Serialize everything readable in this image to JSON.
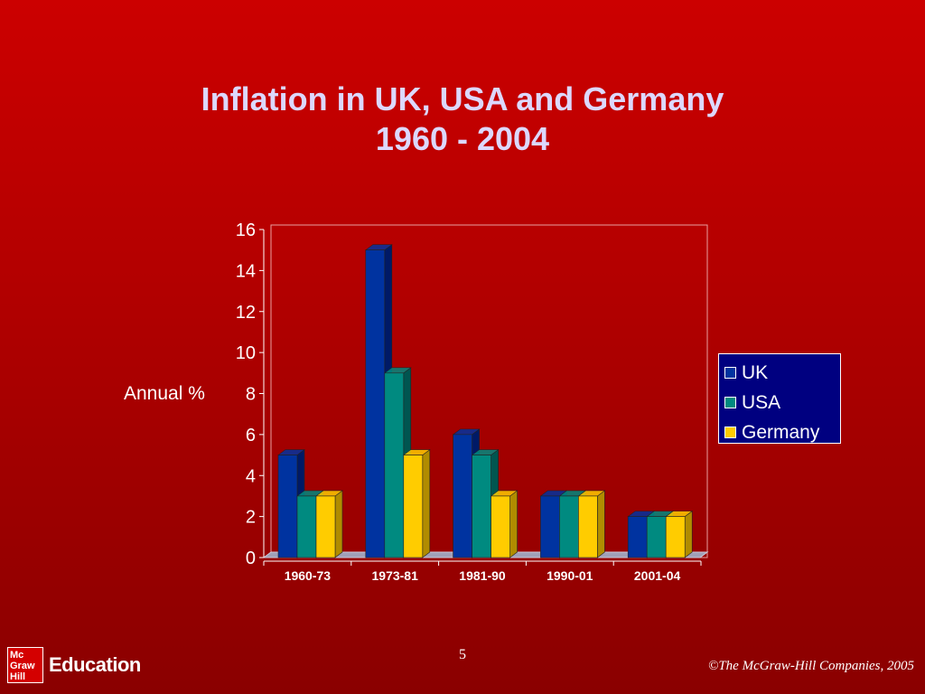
{
  "slide": {
    "title_line1": "Inflation in UK, USA and Germany",
    "title_line2": "1960 - 2004",
    "page_number": "5",
    "copyright": "©The McGraw-Hill Companies, 2005",
    "logo_lines": [
      "Mc",
      "Graw",
      "Hill"
    ],
    "logo_text": "Education"
  },
  "chart_data": {
    "type": "bar",
    "ylabel": "Annual %",
    "categories": [
      "1960-73",
      "1973-81",
      "1981-90",
      "1990-01",
      "2001-04"
    ],
    "series": [
      {
        "name": "UK",
        "values": [
          5,
          15,
          6,
          3,
          2
        ],
        "color": "#0033a0",
        "side": "#001a66"
      },
      {
        "name": "USA",
        "values": [
          3,
          9,
          5,
          3,
          2
        ],
        "color": "#008a80",
        "side": "#005550"
      },
      {
        "name": "Germany",
        "values": [
          3,
          5,
          3,
          3,
          2
        ],
        "color": "#ffcc00",
        "side": "#b08c00"
      }
    ],
    "ylim": [
      0,
      16
    ],
    "yticks": [
      "0",
      "2",
      "4",
      "6",
      "8",
      "10",
      "12",
      "14",
      "16"
    ],
    "legend": "right",
    "grid": false
  }
}
